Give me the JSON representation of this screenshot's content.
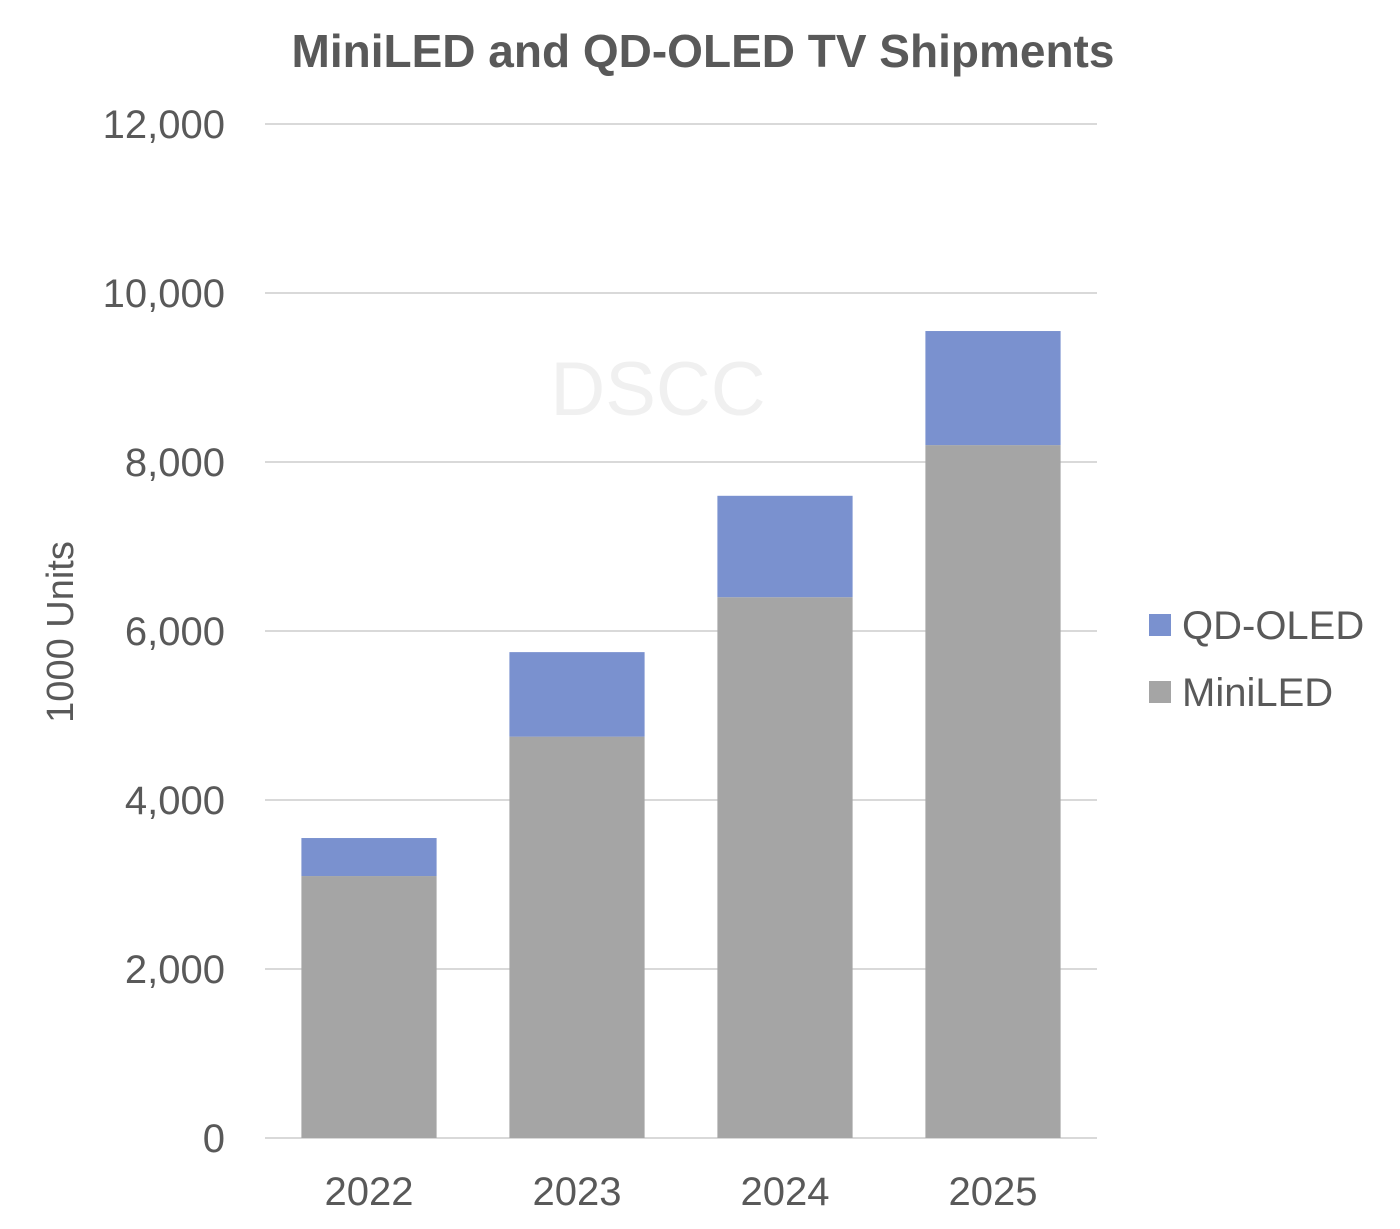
{
  "chart_data": {
    "type": "bar",
    "stacked": true,
    "title": "MiniLED and QD-OLED TV Shipments",
    "xlabel": "",
    "ylabel": "1000 Units",
    "categories": [
      "2022",
      "2023",
      "2024",
      "2025"
    ],
    "series": [
      {
        "name": "MiniLED",
        "values": [
          3100,
          4750,
          6400,
          8200
        ],
        "color": "#a5a5a5"
      },
      {
        "name": "QD-OLED",
        "values": [
          450,
          1000,
          1200,
          1350
        ],
        "color": "#7a91cf"
      }
    ],
    "ylim": [
      0,
      12000
    ],
    "yticks": [
      "0",
      "2,000",
      "4,000",
      "6,000",
      "8,000",
      "10,000",
      "12,000"
    ],
    "ytick_values": [
      0,
      2000,
      4000,
      6000,
      8000,
      10000,
      12000
    ],
    "grid": true,
    "legend_placement": "right",
    "legend_order": [
      "QD-OLED",
      "MiniLED"
    ],
    "watermark": "DSCC"
  }
}
